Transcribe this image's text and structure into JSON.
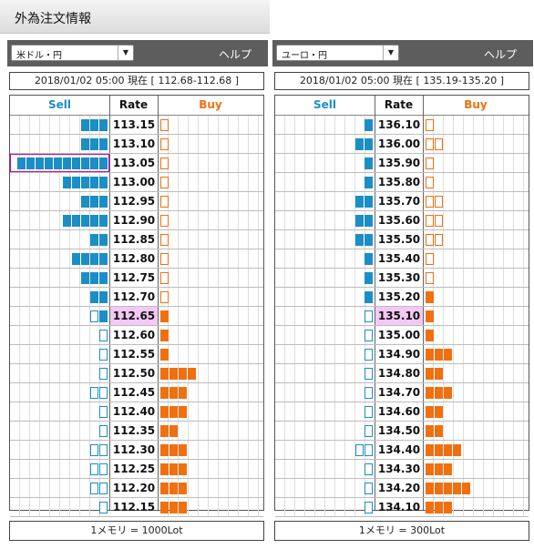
{
  "page_title": "外為注文情報",
  "panels": [
    {
      "pair": "米ドル・円",
      "help": "ヘルプ",
      "quote": "2018/01/02  05:00 現在 [ 112.68-112.68 ]",
      "headers": {
        "sell": "Sell",
        "rate": "Rate",
        "buy": "Buy"
      },
      "current_rate": "112.65",
      "rows": [
        {
          "rate": "113.15",
          "sell": 3,
          "sell_outline": 0,
          "buy": 0,
          "buy_outline": 1
        },
        {
          "rate": "113.10",
          "sell": 3,
          "sell_outline": 0,
          "buy": 0,
          "buy_outline": 1
        },
        {
          "rate": "113.05",
          "sell": 10,
          "sell_outline": 0,
          "buy": 0,
          "buy_outline": 1,
          "sell_highlight": true
        },
        {
          "rate": "113.00",
          "sell": 5,
          "sell_outline": 0,
          "buy": 0,
          "buy_outline": 1
        },
        {
          "rate": "112.95",
          "sell": 3,
          "sell_outline": 0,
          "buy": 0,
          "buy_outline": 1
        },
        {
          "rate": "112.90",
          "sell": 5,
          "sell_outline": 0,
          "buy": 0,
          "buy_outline": 1
        },
        {
          "rate": "112.85",
          "sell": 2,
          "sell_outline": 0,
          "buy": 0,
          "buy_outline": 1
        },
        {
          "rate": "112.80",
          "sell": 4,
          "sell_outline": 0,
          "buy": 0,
          "buy_outline": 1
        },
        {
          "rate": "112.75",
          "sell": 3,
          "sell_outline": 0,
          "buy": 0,
          "buy_outline": 1
        },
        {
          "rate": "112.70",
          "sell": 2,
          "sell_outline": 0,
          "buy": 0,
          "buy_outline": 1
        },
        {
          "rate": "112.65",
          "sell": 1,
          "sell_outline": 1,
          "buy": 1,
          "buy_outline": 0
        },
        {
          "rate": "112.60",
          "sell": 0,
          "sell_outline": 1,
          "buy": 1,
          "buy_outline": 0
        },
        {
          "rate": "112.55",
          "sell": 0,
          "sell_outline": 1,
          "buy": 1,
          "buy_outline": 0
        },
        {
          "rate": "112.50",
          "sell": 0,
          "sell_outline": 1,
          "buy": 4,
          "buy_outline": 0
        },
        {
          "rate": "112.45",
          "sell": 0,
          "sell_outline": 2,
          "buy": 3,
          "buy_outline": 0
        },
        {
          "rate": "112.40",
          "sell": 0,
          "sell_outline": 1,
          "buy": 3,
          "buy_outline": 0
        },
        {
          "rate": "112.35",
          "sell": 0,
          "sell_outline": 1,
          "buy": 2,
          "buy_outline": 0
        },
        {
          "rate": "112.30",
          "sell": 0,
          "sell_outline": 2,
          "buy": 3,
          "buy_outline": 0
        },
        {
          "rate": "112.25",
          "sell": 0,
          "sell_outline": 2,
          "buy": 3,
          "buy_outline": 0
        },
        {
          "rate": "112.20",
          "sell": 0,
          "sell_outline": 2,
          "buy": 3,
          "buy_outline": 0
        },
        {
          "rate": "112.15",
          "sell": 0,
          "sell_outline": 1,
          "buy": 3,
          "buy_outline": 0
        }
      ],
      "footer": "1メモリ = 1000Lot"
    },
    {
      "pair": "ユーロ・円",
      "help": "ヘルプ",
      "quote": "2018/01/02  05:00 現在 [ 135.19-135.20 ]",
      "headers": {
        "sell": "Sell",
        "rate": "Rate",
        "buy": "Buy"
      },
      "current_rate": "135.10",
      "rows": [
        {
          "rate": "136.10",
          "sell": 1,
          "sell_outline": 0,
          "buy": 0,
          "buy_outline": 1
        },
        {
          "rate": "136.00",
          "sell": 2,
          "sell_outline": 0,
          "buy": 0,
          "buy_outline": 2
        },
        {
          "rate": "135.90",
          "sell": 1,
          "sell_outline": 0,
          "buy": 0,
          "buy_outline": 1
        },
        {
          "rate": "135.80",
          "sell": 1,
          "sell_outline": 0,
          "buy": 0,
          "buy_outline": 1
        },
        {
          "rate": "135.70",
          "sell": 2,
          "sell_outline": 0,
          "buy": 0,
          "buy_outline": 2
        },
        {
          "rate": "135.60",
          "sell": 2,
          "sell_outline": 0,
          "buy": 0,
          "buy_outline": 2
        },
        {
          "rate": "135.50",
          "sell": 2,
          "sell_outline": 0,
          "buy": 0,
          "buy_outline": 2
        },
        {
          "rate": "135.40",
          "sell": 1,
          "sell_outline": 0,
          "buy": 0,
          "buy_outline": 1
        },
        {
          "rate": "135.30",
          "sell": 1,
          "sell_outline": 0,
          "buy": 0,
          "buy_outline": 1
        },
        {
          "rate": "135.20",
          "sell": 1,
          "sell_outline": 0,
          "buy": 1,
          "buy_outline": 0
        },
        {
          "rate": "135.10",
          "sell": 0,
          "sell_outline": 1,
          "buy": 1,
          "buy_outline": 0
        },
        {
          "rate": "135.00",
          "sell": 0,
          "sell_outline": 1,
          "buy": 1,
          "buy_outline": 0
        },
        {
          "rate": "134.90",
          "sell": 0,
          "sell_outline": 1,
          "buy": 3,
          "buy_outline": 0
        },
        {
          "rate": "134.80",
          "sell": 0,
          "sell_outline": 1,
          "buy": 2,
          "buy_outline": 0
        },
        {
          "rate": "134.70",
          "sell": 0,
          "sell_outline": 1,
          "buy": 3,
          "buy_outline": 0
        },
        {
          "rate": "134.60",
          "sell": 0,
          "sell_outline": 1,
          "buy": 2,
          "buy_outline": 0
        },
        {
          "rate": "134.50",
          "sell": 0,
          "sell_outline": 1,
          "buy": 2,
          "buy_outline": 0
        },
        {
          "rate": "134.40",
          "sell": 0,
          "sell_outline": 2,
          "buy": 4,
          "buy_outline": 0
        },
        {
          "rate": "134.30",
          "sell": 0,
          "sell_outline": 1,
          "buy": 3,
          "buy_outline": 0
        },
        {
          "rate": "134.20",
          "sell": 0,
          "sell_outline": 1,
          "buy": 5,
          "buy_outline": 0
        },
        {
          "rate": "134.10",
          "sell": 0,
          "sell_outline": 1,
          "buy": 3,
          "buy_outline": 0
        }
      ],
      "footer": "1メモリ = 300Lot"
    }
  ]
}
